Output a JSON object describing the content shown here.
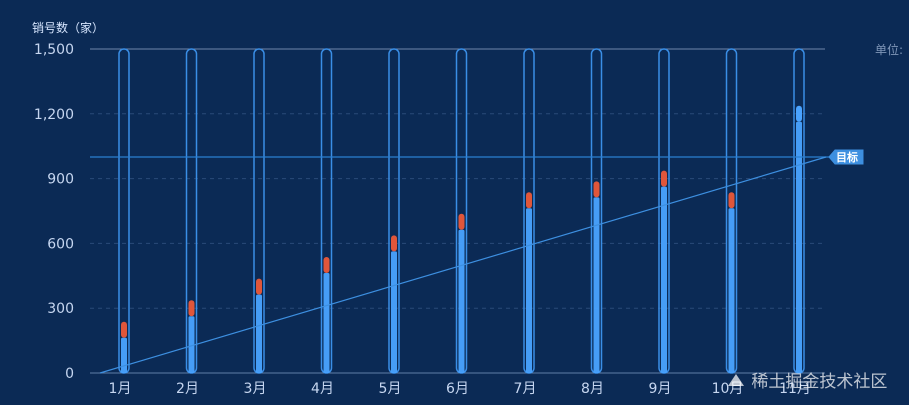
{
  "chart_data": {
    "type": "bar",
    "ylabel": "销号数（家）",
    "unit_label": "单位:",
    "ylim": [
      0,
      1500
    ],
    "yticks": [
      0,
      300,
      600,
      900,
      1200,
      1500
    ],
    "ytick_labels": [
      "0",
      "300",
      "600",
      "900",
      "1,200",
      "1,500"
    ],
    "categories": [
      "1月",
      "2月",
      "3月",
      "4月",
      "5月",
      "6月",
      "7月",
      "8月",
      "9月",
      "10月",
      "11月"
    ],
    "series": [
      {
        "values": [
          200,
          300,
          400,
          500,
          600,
          700,
          800,
          850,
          900,
          800,
          1200
        ]
      }
    ],
    "target": {
      "label": "目标",
      "value": 1000
    },
    "trend_line": {
      "from": {
        "x": 0,
        "y": 0
      },
      "to": {
        "x": 11,
        "y": 1000
      }
    },
    "grid": true,
    "colors": {
      "background": "#0b2a55",
      "bar_outline": "#3a8ee6",
      "bar_fill": "#4aa3ff",
      "marker_below_target": "#e0563a",
      "marker_above_target": "#4aa3ff",
      "grid": "#2a4a78",
      "axis_text": "#c6d6f0",
      "target_badge": "#3d8fe0"
    }
  },
  "watermark": {
    "text": "稀土掘金技术社区"
  }
}
